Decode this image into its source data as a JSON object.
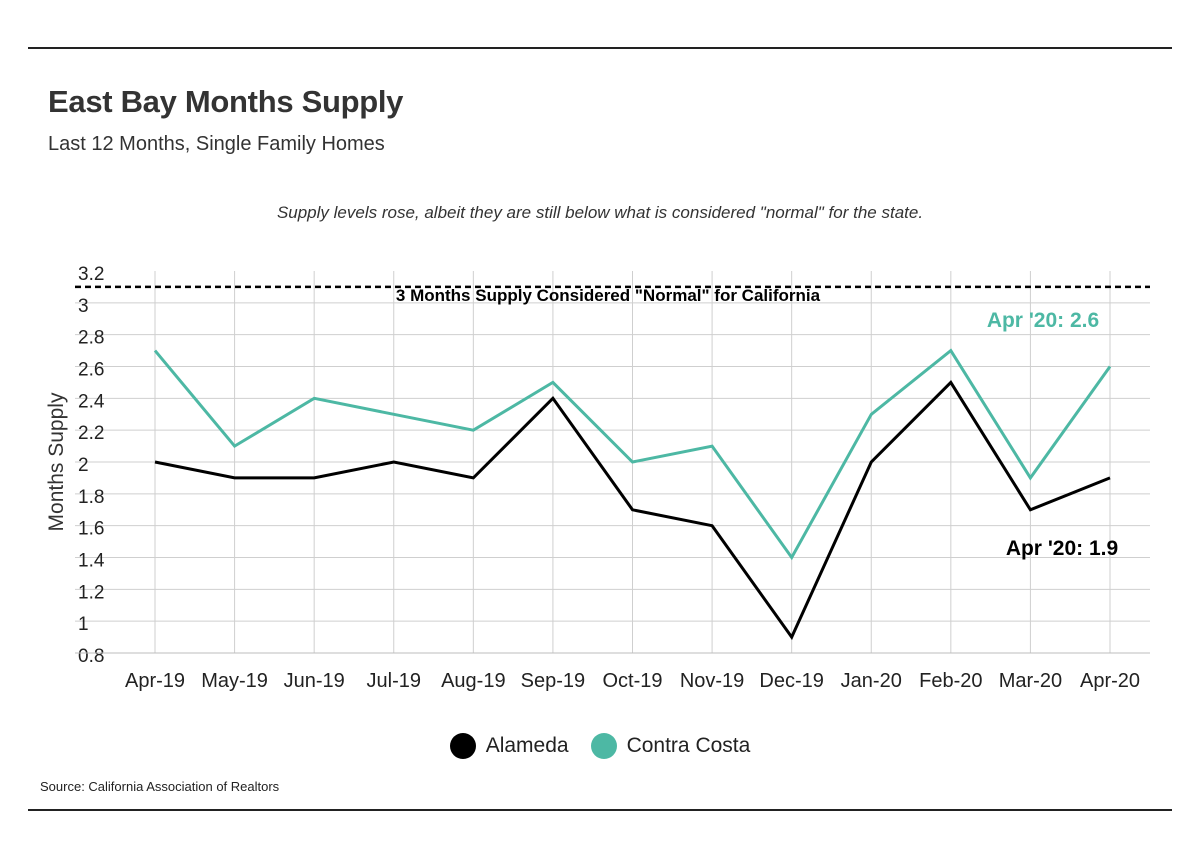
{
  "header": {
    "title": "East Bay Months Supply",
    "subtitle": "Last 12 Months, Single Family Homes"
  },
  "note": "Supply levels rose, albeit they are still below what is considered \"normal\" for the state.",
  "source": "Source:  California Association of Realtors",
  "chart_data": {
    "type": "line",
    "ylabel": "Months Supply",
    "ylim": [
      0.8,
      3.2
    ],
    "yticks": [
      "0.8",
      "1",
      "1.2",
      "1.4",
      "1.6",
      "1.8",
      "2",
      "2.2",
      "2.4",
      "2.6",
      "2.8",
      "3",
      "3.2"
    ],
    "grid": true,
    "categories": [
      "Apr-19",
      "May-19",
      "Jun-19",
      "Jul-19",
      "Aug-19",
      "Sep-19",
      "Oct-19",
      "Nov-19",
      "Dec-19",
      "Jan-20",
      "Feb-20",
      "Mar-20",
      "Apr-20"
    ],
    "series": [
      {
        "name": "Alameda",
        "color": "#000000",
        "values": [
          2.0,
          1.9,
          1.9,
          2.0,
          1.9,
          2.4,
          1.7,
          1.6,
          0.9,
          2.0,
          2.5,
          1.7,
          1.9
        ]
      },
      {
        "name": "Contra Costa",
        "color": "#4db8a4",
        "values": [
          2.7,
          2.1,
          2.4,
          2.3,
          2.2,
          2.5,
          2.0,
          2.1,
          1.4,
          2.3,
          2.7,
          1.9,
          2.6
        ]
      }
    ],
    "reference_line": {
      "value": 3.1,
      "style": "dashed",
      "label": "3 Months Supply Considered \"Normal\" for California"
    },
    "annotations": [
      {
        "series": "Contra Costa",
        "text": "Apr '20: 2.6"
      },
      {
        "series": "Alameda",
        "text": "Apr '20: 1.9"
      }
    ],
    "legend_position": "bottom"
  }
}
